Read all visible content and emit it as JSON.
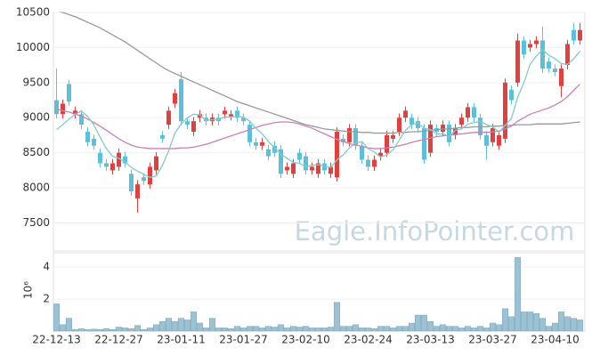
{
  "chart_data": [
    {
      "type": "candlestick",
      "watermark": "Eagle.InfoPointer.com",
      "ylim": [
        7100,
        10500
      ],
      "yticks": [
        7500,
        8000,
        8500,
        9000,
        9500,
        10000,
        10500
      ],
      "up_color": "#e0413f",
      "down_color": "#5bc0d8",
      "open": [
        9250,
        9050,
        9480,
        9050,
        9050,
        8800,
        8700,
        8500,
        8350,
        8250,
        8300,
        8450,
        8200,
        7850,
        8150,
        8050,
        8250,
        8750,
        8900,
        9200,
        9550,
        8950,
        8800,
        9000,
        9000,
        8950,
        9000,
        9050,
        9020,
        9100,
        9000,
        8900,
        8650,
        8600,
        8550,
        8600,
        8550,
        8250,
        8200,
        8500,
        8450,
        8250,
        8200,
        8350,
        8200,
        8150,
        8700,
        8650,
        8850,
        8600,
        8400,
        8300,
        8450,
        8500,
        8700,
        8800,
        9000,
        9000,
        8950,
        8850,
        8500,
        8850,
        8800,
        8900,
        8750,
        8900,
        9000,
        9150,
        9000,
        8750,
        8650,
        8600,
        8700,
        9400,
        9500,
        10100,
        10000,
        10050,
        10100,
        9800,
        9700,
        9450,
        9750,
        10250,
        10100
      ],
      "high": [
        9700,
        9260,
        9540,
        9160,
        9110,
        8860,
        8760,
        8560,
        8410,
        8410,
        8560,
        8510,
        8260,
        8110,
        8210,
        8360,
        8510,
        8810,
        9160,
        9410,
        9650,
        9010,
        9010,
        9110,
        9060,
        9060,
        9060,
        9160,
        9110,
        9160,
        9060,
        8960,
        8710,
        8710,
        8610,
        8660,
        8610,
        8360,
        8410,
        8560,
        8510,
        8360,
        8410,
        8410,
        8360,
        8860,
        8760,
        8910,
        8910,
        8660,
        8460,
        8460,
        8560,
        8810,
        8810,
        9060,
        9160,
        9060,
        9010,
        8910,
        8960,
        8910,
        8960,
        8960,
        8910,
        9060,
        9210,
        9210,
        9060,
        8810,
        8910,
        8810,
        9560,
        9460,
        10200,
        10160,
        10110,
        10160,
        10300,
        9860,
        9760,
        9760,
        10110,
        10350,
        10350
      ],
      "low": [
        8990,
        8990,
        9170,
        8990,
        8840,
        8590,
        8540,
        8290,
        8240,
        8190,
        8240,
        8290,
        7890,
        7650,
        8040,
        7990,
        8190,
        8640,
        8840,
        9140,
        8890,
        8840,
        8740,
        8940,
        8890,
        8890,
        8890,
        8990,
        8960,
        8940,
        8890,
        8590,
        8540,
        8540,
        8390,
        8440,
        8140,
        8190,
        8140,
        8340,
        8190,
        8190,
        8140,
        8190,
        8140,
        8090,
        8590,
        8590,
        8540,
        8340,
        8240,
        8240,
        8390,
        8440,
        8640,
        8740,
        8940,
        8840,
        8790,
        8340,
        8440,
        8740,
        8740,
        8590,
        8690,
        8840,
        8940,
        8940,
        8690,
        8400,
        8590,
        8540,
        8640,
        9190,
        9440,
        9840,
        9940,
        9990,
        9640,
        9640,
        9590,
        9290,
        9690,
        10040,
        10040
      ],
      "close": [
        9050,
        9200,
        9230,
        9100,
        8900,
        8650,
        8600,
        8350,
        8300,
        8350,
        8500,
        8350,
        7950,
        8050,
        8100,
        8300,
        8450,
        8700,
        9100,
        9350,
        8950,
        8900,
        8950,
        9050,
        8950,
        9000,
        8950,
        9100,
        9050,
        9000,
        8950,
        8650,
        8600,
        8650,
        8450,
        8500,
        8200,
        8300,
        8350,
        8400,
        8250,
        8300,
        8350,
        8250,
        8300,
        8800,
        8650,
        8850,
        8600,
        8400,
        8300,
        8400,
        8500,
        8750,
        8750,
        9000,
        9100,
        8900,
        8850,
        8400,
        8900,
        8800,
        8900,
        8650,
        8850,
        9000,
        9150,
        9000,
        8750,
        8600,
        8850,
        8750,
        9500,
        9250,
        10100,
        9900,
        10050,
        10100,
        9700,
        9700,
        9650,
        9700,
        10050,
        10100,
        10250
      ],
      "series": [
        {
          "color": "#999999",
          "values": [
            10520,
            10500,
            10470,
            10440,
            10400,
            10360,
            10320,
            10280,
            10230,
            10180,
            10130,
            10080,
            10020,
            9960,
            9900,
            9840,
            9780,
            9720,
            9670,
            9630,
            9590,
            9550,
            9510,
            9470,
            9430,
            9390,
            9350,
            9310,
            9270,
            9230,
            9200,
            9170,
            9140,
            9110,
            9080,
            9050,
            9020,
            8990,
            8960,
            8930,
            8900,
            8880,
            8860,
            8840,
            8830,
            8820,
            8810,
            8800,
            8800,
            8790,
            8790,
            8780,
            8780,
            8780,
            8780,
            8790,
            8790,
            8800,
            8800,
            8810,
            8820,
            8830,
            8840,
            8840,
            8850,
            8860,
            8860,
            8870,
            8870,
            8870,
            8880,
            8880,
            8890,
            8890,
            8900,
            8900,
            8900,
            8910,
            8910,
            8910,
            8910,
            8910,
            8920,
            8930,
            8940
          ]
        },
        {
          "color": "#c97fb6",
          "values": [
            9120,
            9100,
            9080,
            9050,
            9020,
            8980,
            8930,
            8880,
            8820,
            8760,
            8700,
            8650,
            8610,
            8580,
            8570,
            8560,
            8560,
            8560,
            8560,
            8560,
            8570,
            8570,
            8580,
            8600,
            8620,
            8650,
            8680,
            8710,
            8740,
            8770,
            8800,
            8830,
            8860,
            8890,
            8910,
            8930,
            8940,
            8940,
            8930,
            8910,
            8880,
            8850,
            8810,
            8770,
            8730,
            8690,
            8660,
            8630,
            8610,
            8590,
            8570,
            8560,
            8560,
            8570,
            8580,
            8600,
            8620,
            8650,
            8670,
            8690,
            8710,
            8730,
            8740,
            8750,
            8760,
            8770,
            8780,
            8790,
            8790,
            8790,
            8800,
            8810,
            8840,
            8880,
            8950,
            9000,
            9050,
            9080,
            9110,
            9140,
            9180,
            9230,
            9300,
            9390,
            9480
          ]
        },
        {
          "color": "#80cbc8",
          "values": [
            8830,
            8900,
            8980,
            9050,
            9096,
            9016,
            8896,
            8720,
            8560,
            8450,
            8420,
            8370,
            8290,
            8240,
            8190,
            8150,
            8170,
            8320,
            8530,
            8780,
            8910,
            9000,
            9050,
            9040,
            8960,
            8970,
            8980,
            9010,
            9010,
            9020,
            9010,
            8950,
            8850,
            8770,
            8660,
            8570,
            8480,
            8420,
            8360,
            8350,
            8300,
            8320,
            8330,
            8310,
            8290,
            8400,
            8470,
            8570,
            8640,
            8660,
            8560,
            8510,
            8440,
            8470,
            8540,
            8680,
            8820,
            8900,
            8920,
            8850,
            8830,
            8770,
            8770,
            8730,
            8820,
            8840,
            8910,
            8930,
            8950,
            8900,
            8870,
            8790,
            8890,
            8990,
            9290,
            9500,
            9760,
            9880,
            9970,
            9890,
            9840,
            9770,
            9760,
            9840,
            9950
          ]
        }
      ]
    },
    {
      "type": "bar",
      "ylabel": "10⁶",
      "ylim": [
        0,
        4.9
      ],
      "yticks": [
        2,
        4
      ],
      "color": "#9cc1d3",
      "categories": [
        "22-12-13",
        null,
        null,
        null,
        null,
        null,
        null,
        null,
        null,
        null,
        "22-12-27",
        null,
        null,
        null,
        null,
        null,
        null,
        null,
        null,
        null,
        "23-01-11",
        null,
        null,
        null,
        null,
        null,
        null,
        null,
        null,
        null,
        "23-01-27",
        null,
        null,
        null,
        null,
        null,
        null,
        null,
        null,
        null,
        "23-02-10",
        null,
        null,
        null,
        null,
        null,
        null,
        null,
        null,
        null,
        "23-02-24",
        null,
        null,
        null,
        null,
        null,
        null,
        null,
        null,
        null,
        "23-03-13",
        null,
        null,
        null,
        null,
        null,
        null,
        null,
        null,
        null,
        "23-03-27",
        null,
        null,
        null,
        null,
        null,
        null,
        null,
        null,
        null,
        "23-04-10",
        null,
        null,
        null,
        null
      ],
      "values": [
        1.7,
        0.4,
        0.8,
        0.1,
        0.15,
        0.1,
        0.12,
        0.1,
        0.15,
        0.1,
        0.25,
        0.2,
        0.15,
        0.35,
        0.1,
        0.2,
        0.4,
        0.6,
        0.8,
        0.6,
        0.8,
        0.7,
        1.2,
        0.5,
        0.2,
        0.8,
        0.2,
        0.2,
        0.15,
        0.3,
        0.2,
        0.3,
        0.3,
        0.2,
        0.3,
        0.25,
        0.4,
        0.2,
        0.3,
        0.25,
        0.3,
        0.2,
        0.2,
        0.2,
        0.25,
        1.8,
        0.3,
        0.3,
        0.4,
        0.2,
        0.2,
        0.15,
        0.3,
        0.3,
        0.2,
        0.3,
        0.3,
        0.5,
        1.0,
        1.0,
        0.6,
        0.3,
        0.4,
        0.3,
        0.3,
        0.2,
        0.3,
        0.2,
        0.3,
        0.2,
        0.5,
        0.4,
        1.4,
        0.9,
        4.6,
        1.2,
        1.2,
        1.1,
        0.8,
        0.3,
        0.5,
        1.2,
        0.9,
        0.8,
        0.7
      ]
    }
  ]
}
